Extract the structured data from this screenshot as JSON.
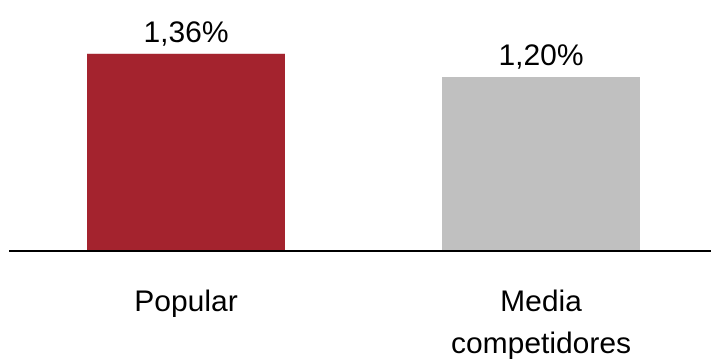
{
  "chart_data": {
    "type": "bar",
    "categories": [
      [
        "Popular"
      ],
      [
        "Media",
        "competidores"
      ]
    ],
    "values": [
      1.36,
      1.2
    ],
    "value_labels": [
      "1,36%",
      "1,20%"
    ],
    "colors": [
      "#a4232e",
      "#c0c0c0"
    ],
    "axis_color": "#000000",
    "title": "",
    "xlabel": "",
    "ylabel": "",
    "unit": "%",
    "grid": false,
    "legend": "none"
  }
}
